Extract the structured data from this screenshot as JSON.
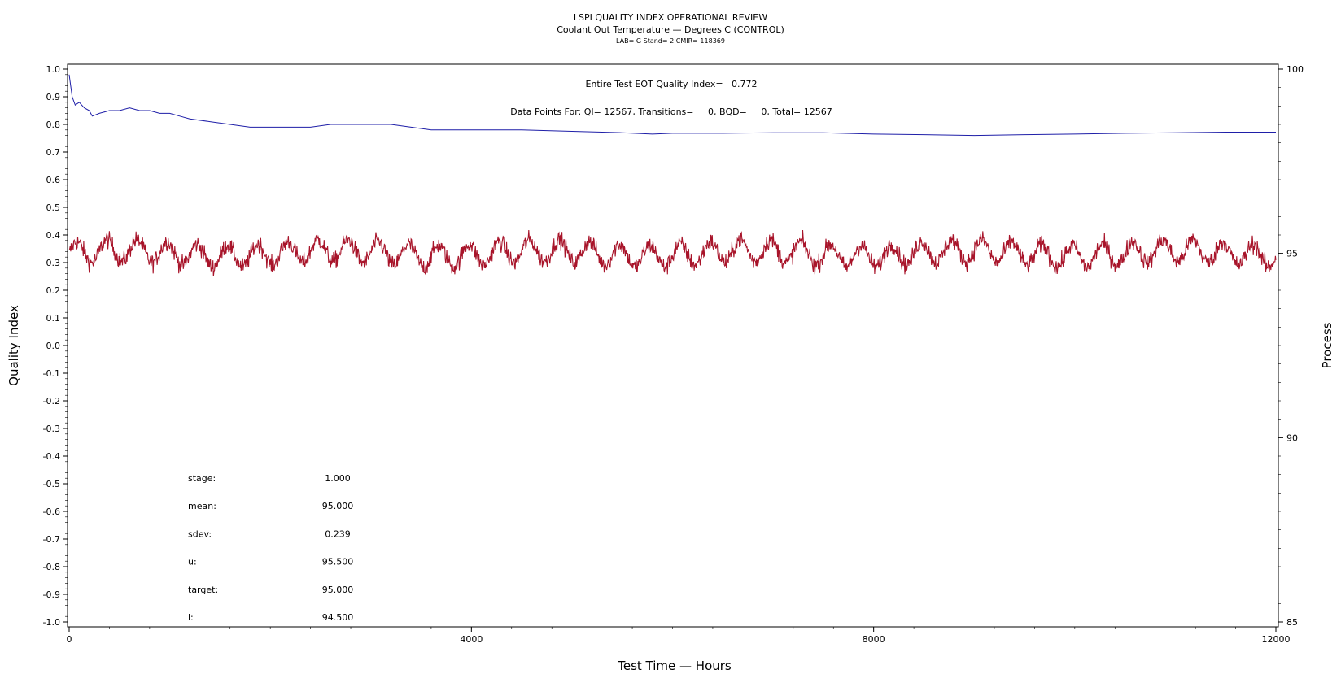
{
  "header": {
    "title": "LSPI QUALITY INDEX OPERATIONAL REVIEW",
    "subtitle": "Coolant Out Temperature — Degrees C (CONTROL)",
    "info": "LAB= G Stand= 2 CMIR= 118369"
  },
  "annotations": {
    "quality_index": "Entire Test EOT Quality Index=   0.772",
    "data_points": "Data Points For: QI= 12567, Transitions=     0, BQD=     0, Total= 12567"
  },
  "stats": [
    {
      "label": "stage:",
      "value": "1.000"
    },
    {
      "label": "mean:",
      "value": "95.000"
    },
    {
      "label": "sdev:",
      "value": "0.239"
    },
    {
      "label": "u:",
      "value": "95.500"
    },
    {
      "label": "target:",
      "value": "95.000"
    },
    {
      "label": "l:",
      "value": "94.500"
    }
  ],
  "chart_data": {
    "type": "line",
    "title": "LSPI QUALITY INDEX OPERATIONAL REVIEW",
    "subtitle": "Coolant Out Temperature — Degrees C (CONTROL)",
    "xlabel": "Test Time — Hours",
    "ylabel_left": "Quality Index",
    "ylabel_right": "Process",
    "xlim": [
      0,
      12000
    ],
    "ylim_left": [
      -1.0,
      1.0
    ],
    "ylim_right": [
      85,
      100
    ],
    "x_ticks": [
      0,
      4000,
      8000,
      12000
    ],
    "y_left_ticks": [
      1.0,
      0.9,
      0.8,
      0.7,
      0.6,
      0.5,
      0.4,
      0.3,
      0.2,
      0.1,
      0.0,
      -0.1,
      -0.2,
      -0.3,
      -0.4,
      -0.5,
      -0.6,
      -0.7,
      -0.8,
      -0.9,
      -1.0
    ],
    "y_right_ticks": [
      85,
      90,
      95,
      100
    ],
    "grid": false,
    "colors": {
      "quality_index": "#1f1fa8",
      "process": "#a8142a"
    },
    "series": [
      {
        "axis": "left",
        "color": "#1f1fa8",
        "x": [
          0,
          30,
          60,
          100,
          150,
          200,
          230,
          300,
          400,
          500,
          600,
          700,
          800,
          900,
          1000,
          1100,
          1200,
          1400,
          1600,
          1800,
          2000,
          2200,
          2400,
          2600,
          2800,
          3000,
          3200,
          3400,
          3600,
          3800,
          4000,
          4500,
          5000,
          5500,
          5800,
          6000,
          6500,
          7000,
          7500,
          8000,
          8500,
          9000,
          9500,
          10000,
          10500,
          11000,
          11500,
          12000
        ],
        "y": [
          0.98,
          0.9,
          0.87,
          0.88,
          0.86,
          0.85,
          0.83,
          0.84,
          0.85,
          0.85,
          0.86,
          0.85,
          0.85,
          0.84,
          0.84,
          0.83,
          0.82,
          0.81,
          0.8,
          0.79,
          0.79,
          0.79,
          0.79,
          0.8,
          0.8,
          0.8,
          0.8,
          0.79,
          0.78,
          0.78,
          0.78,
          0.78,
          0.775,
          0.77,
          0.765,
          0.768,
          0.768,
          0.77,
          0.77,
          0.765,
          0.763,
          0.76,
          0.763,
          0.765,
          0.768,
          0.77,
          0.772,
          0.772
        ]
      },
      {
        "axis": "right",
        "color": "#a8142a",
        "center": 95.0,
        "cycle_hours": 300,
        "x_range": [
          0,
          12000
        ],
        "amplitude": 0.3,
        "noise_sdev": 0.12
      }
    ]
  }
}
